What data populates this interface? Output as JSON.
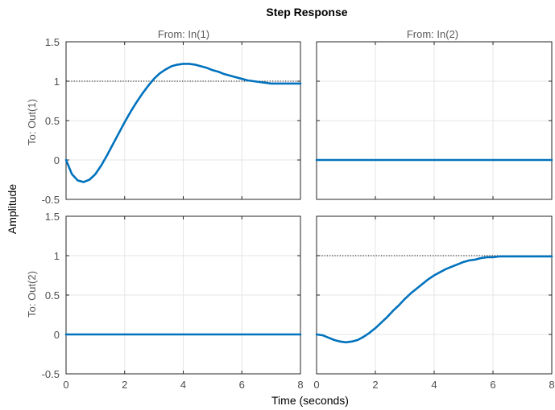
{
  "chart_data": {
    "type": "line",
    "title": "Step Response",
    "xlabel": "Time (seconds)",
    "ylabel": "Amplitude",
    "column_labels": [
      "From: In(1)",
      "From: In(2)"
    ],
    "row_labels": [
      "To: Out(1)",
      "To: Out(2)"
    ],
    "xlim": [
      0,
      8
    ],
    "ylim": [
      -0.5,
      1.5
    ],
    "x_ticks": [
      "0",
      "2",
      "4",
      "6",
      "8"
    ],
    "y_ticks": [
      "-0.5",
      "0",
      "0.5",
      "1",
      "1.5"
    ],
    "grid": true,
    "line_color": "#0072BD",
    "reference_line_color": "#000000",
    "panels": [
      {
        "row": 0,
        "col": 0,
        "steady_state": 1,
        "x": [
          0,
          0.2,
          0.4,
          0.6,
          0.8,
          1.0,
          1.2,
          1.4,
          1.6,
          1.8,
          2.0,
          2.2,
          2.4,
          2.6,
          2.8,
          3.0,
          3.2,
          3.4,
          3.6,
          3.8,
          4.0,
          4.2,
          4.4,
          4.6,
          4.8,
          5.0,
          5.2,
          5.4,
          5.6,
          5.8,
          6.0,
          6.2,
          6.4,
          6.6,
          6.8,
          7.0,
          7.2,
          7.4,
          7.6,
          7.8,
          8.0
        ],
        "y": [
          0,
          -0.18,
          -0.26,
          -0.28,
          -0.25,
          -0.18,
          -0.07,
          0.06,
          0.2,
          0.34,
          0.48,
          0.61,
          0.73,
          0.84,
          0.94,
          1.03,
          1.1,
          1.15,
          1.19,
          1.21,
          1.22,
          1.22,
          1.21,
          1.19,
          1.17,
          1.14,
          1.12,
          1.09,
          1.07,
          1.05,
          1.03,
          1.01,
          1.0,
          0.99,
          0.98,
          0.97,
          0.97,
          0.97,
          0.97,
          0.97,
          0.97
        ]
      },
      {
        "row": 0,
        "col": 1,
        "x": [
          0,
          8
        ],
        "y": [
          0,
          0
        ]
      },
      {
        "row": 1,
        "col": 0,
        "x": [
          0,
          8
        ],
        "y": [
          0,
          0
        ]
      },
      {
        "row": 1,
        "col": 1,
        "steady_state": 1,
        "x": [
          0,
          0.2,
          0.4,
          0.6,
          0.8,
          1.0,
          1.2,
          1.4,
          1.6,
          1.8,
          2.0,
          2.2,
          2.4,
          2.6,
          2.8,
          3.0,
          3.2,
          3.4,
          3.6,
          3.8,
          4.0,
          4.2,
          4.4,
          4.6,
          4.8,
          5.0,
          5.2,
          5.4,
          5.6,
          5.8,
          6.0,
          6.2,
          6.4,
          6.6,
          6.8,
          7.0,
          7.2,
          7.4,
          7.6,
          7.8,
          8.0
        ],
        "y": [
          0,
          -0.01,
          -0.04,
          -0.07,
          -0.09,
          -0.1,
          -0.09,
          -0.07,
          -0.03,
          0.02,
          0.08,
          0.15,
          0.22,
          0.3,
          0.37,
          0.45,
          0.52,
          0.58,
          0.64,
          0.7,
          0.75,
          0.79,
          0.83,
          0.86,
          0.89,
          0.92,
          0.94,
          0.95,
          0.97,
          0.98,
          0.98,
          0.99,
          0.99,
          0.99,
          0.99,
          0.99,
          0.99,
          0.99,
          0.99,
          0.99,
          0.99
        ]
      }
    ]
  }
}
